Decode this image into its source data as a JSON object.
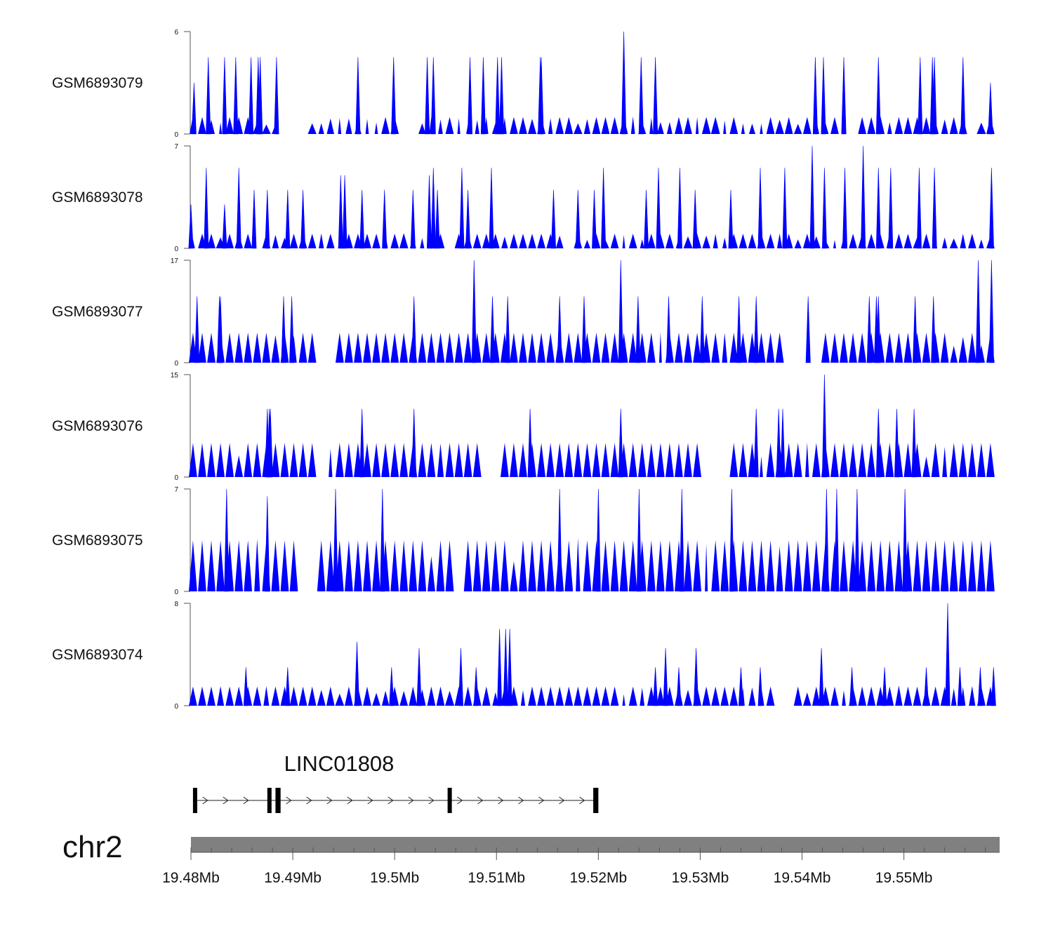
{
  "chart_data": {
    "type": "area",
    "title": "",
    "chromosome": "chr2",
    "xlim": [
      19.48,
      19.5594
    ],
    "x_unit": "Mb",
    "x_ticks": [
      19.48,
      19.49,
      19.5,
      19.51,
      19.52,
      19.53,
      19.54,
      19.55
    ],
    "x_tick_labels": [
      "19.48Mb",
      "19.49Mb",
      "19.5Mb",
      "19.51Mb",
      "19.52Mb",
      "19.53Mb",
      "19.54Mb",
      "19.55Mb"
    ],
    "series_color": "#0000ff",
    "tracks": [
      {
        "name": "GSM6893079",
        "ymax": 6,
        "ymin": 0,
        "baseline": 1,
        "seed": 79,
        "density": 0.55,
        "peaks": [
          [
            19.4803,
            3
          ],
          [
            19.4817,
            4.5
          ],
          [
            19.4833,
            4.5
          ],
          [
            19.4844,
            4.5
          ],
          [
            19.4859,
            4.5
          ],
          [
            19.4866,
            4.5
          ],
          [
            19.4868,
            4.5
          ],
          [
            19.4884,
            4.5
          ],
          [
            19.4964,
            4.5
          ],
          [
            19.4999,
            4.5
          ],
          [
            19.5032,
            4.5
          ],
          [
            19.5038,
            4.5
          ],
          [
            19.5074,
            4.5
          ],
          [
            19.5087,
            4.5
          ],
          [
            19.5101,
            4.5
          ],
          [
            19.5105,
            4.5
          ],
          [
            19.5143,
            4.5
          ],
          [
            19.5144,
            4.5
          ],
          [
            19.5225,
            6
          ],
          [
            19.5242,
            4.5
          ],
          [
            19.5256,
            4.5
          ],
          [
            19.5413,
            4.5
          ],
          [
            19.5421,
            4.5
          ],
          [
            19.5441,
            4.5
          ],
          [
            19.5475,
            4.5
          ],
          [
            19.5516,
            4.5
          ],
          [
            19.5528,
            4.5
          ],
          [
            19.553,
            4.5
          ],
          [
            19.5558,
            4.5
          ],
          [
            19.5585,
            3
          ]
        ],
        "gaps": [
          [
            19.489,
            19.4915
          ],
          [
            19.5008,
            19.502
          ],
          [
            19.544,
            19.5458
          ],
          [
            19.556,
            19.5575
          ]
        ]
      },
      {
        "name": "GSM6893078",
        "ymax": 7,
        "ymin": 0,
        "baseline": 1,
        "seed": 78,
        "density": 0.55,
        "peaks": [
          [
            19.48,
            3
          ],
          [
            19.4815,
            5.5
          ],
          [
            19.4833,
            3
          ],
          [
            19.4847,
            5.5
          ],
          [
            19.4862,
            4
          ],
          [
            19.4875,
            4
          ],
          [
            19.4895,
            4
          ],
          [
            19.491,
            4
          ],
          [
            19.4947,
            5
          ],
          [
            19.4951,
            5
          ],
          [
            19.4968,
            4
          ],
          [
            19.499,
            4
          ],
          [
            19.5018,
            4
          ],
          [
            19.5034,
            5
          ],
          [
            19.5038,
            5.5
          ],
          [
            19.5042,
            4
          ],
          [
            19.5066,
            5.5
          ],
          [
            19.5072,
            4
          ],
          [
            19.5095,
            5.5
          ],
          [
            19.5156,
            4
          ],
          [
            19.518,
            4
          ],
          [
            19.5196,
            4
          ],
          [
            19.5205,
            5.5
          ],
          [
            19.5247,
            4
          ],
          [
            19.5259,
            5.5
          ],
          [
            19.528,
            5.5
          ],
          [
            19.5295,
            4
          ],
          [
            19.533,
            4
          ],
          [
            19.5359,
            5.5
          ],
          [
            19.5383,
            5.5
          ],
          [
            19.541,
            7
          ],
          [
            19.5422,
            5.5
          ],
          [
            19.5442,
            5.5
          ],
          [
            19.546,
            7
          ],
          [
            19.5475,
            5.5
          ],
          [
            19.5487,
            5.5
          ],
          [
            19.5515,
            5.5
          ],
          [
            19.553,
            5.5
          ],
          [
            19.5586,
            5.5
          ]
        ],
        "gaps": [
          [
            19.4858,
            19.4868
          ],
          [
            19.505,
            19.506
          ],
          [
            19.5165,
            19.5175
          ]
        ]
      },
      {
        "name": "GSM6893077",
        "ymax": 17,
        "ymin": 0,
        "baseline": 5,
        "seed": 77,
        "density": 0.12,
        "peaks": [
          [
            19.4806,
            11
          ],
          [
            19.4828,
            11
          ],
          [
            19.4829,
            11
          ],
          [
            19.4891,
            11
          ],
          [
            19.4899,
            11
          ],
          [
            19.5019,
            11
          ],
          [
            19.5078,
            17
          ],
          [
            19.5096,
            11
          ],
          [
            19.5111,
            11
          ],
          [
            19.5162,
            11
          ],
          [
            19.5186,
            11
          ],
          [
            19.5222,
            17
          ],
          [
            19.5239,
            11
          ],
          [
            19.5269,
            11
          ],
          [
            19.5302,
            11
          ],
          [
            19.5338,
            11
          ],
          [
            19.5355,
            11
          ],
          [
            19.5406,
            11
          ],
          [
            19.5466,
            11
          ],
          [
            19.5473,
            11
          ],
          [
            19.5475,
            11
          ],
          [
            19.5511,
            11
          ],
          [
            19.5529,
            11
          ],
          [
            19.5573,
            17
          ],
          [
            19.5586,
            17
          ]
        ],
        "gaps": [
          [
            19.492,
            19.4945
          ],
          [
            19.5385,
            19.542
          ]
        ]
      },
      {
        "name": "GSM6893076",
        "ymax": 15,
        "ymin": 0,
        "baseline": 5,
        "seed": 76,
        "density": 0.07,
        "peaks": [
          [
            19.4875,
            10
          ],
          [
            19.4877,
            10
          ],
          [
            19.4878,
            10
          ],
          [
            19.4968,
            10
          ],
          [
            19.5019,
            10
          ],
          [
            19.5133,
            10
          ],
          [
            19.5222,
            10
          ],
          [
            19.5355,
            10
          ],
          [
            19.5377,
            10
          ],
          [
            19.5381,
            10
          ],
          [
            19.5422,
            15
          ],
          [
            19.5475,
            10
          ],
          [
            19.5493,
            10
          ],
          [
            19.551,
            10
          ]
        ],
        "gaps": [
          [
            19.492,
            19.4935
          ],
          [
            19.509,
            19.51
          ],
          [
            19.5305,
            19.5325
          ]
        ]
      },
      {
        "name": "GSM6893075",
        "ymax": 7,
        "ymin": 0,
        "baseline": 3.5,
        "seed": 75,
        "density": 0.06,
        "peaks": [
          [
            19.4835,
            7
          ],
          [
            19.4875,
            6.5
          ],
          [
            19.4942,
            7
          ],
          [
            19.4988,
            7
          ],
          [
            19.5162,
            7
          ],
          [
            19.52,
            7
          ],
          [
            19.524,
            7
          ],
          [
            19.5282,
            7
          ],
          [
            19.5331,
            7
          ],
          [
            19.5424,
            7
          ],
          [
            19.5434,
            7
          ],
          [
            19.5454,
            7
          ],
          [
            19.5501,
            7
          ]
        ],
        "gaps": [
          [
            19.4905,
            19.4925
          ],
          [
            19.5055,
            19.507
          ]
        ]
      },
      {
        "name": "GSM6893074",
        "ymax": 8,
        "ymin": 0,
        "baseline": 1.5,
        "seed": 74,
        "density": 0.3,
        "peaks": [
          [
            19.4854,
            3
          ],
          [
            19.4895,
            3
          ],
          [
            19.4963,
            5
          ],
          [
            19.4997,
            3
          ],
          [
            19.5024,
            4.5
          ],
          [
            19.5065,
            4.5
          ],
          [
            19.508,
            3
          ],
          [
            19.5103,
            6
          ],
          [
            19.5109,
            6
          ],
          [
            19.5113,
            6
          ],
          [
            19.5256,
            3
          ],
          [
            19.5266,
            4.5
          ],
          [
            19.5279,
            3
          ],
          [
            19.5296,
            4.5
          ],
          [
            19.534,
            3
          ],
          [
            19.5359,
            3
          ],
          [
            19.5419,
            4.5
          ],
          [
            19.5449,
            3
          ],
          [
            19.5481,
            3
          ],
          [
            19.5522,
            3
          ],
          [
            19.5543,
            8
          ],
          [
            19.5555,
            3
          ],
          [
            19.5575,
            3
          ],
          [
            19.5588,
            3
          ]
        ],
        "gaps": [
          [
            19.5375,
            19.5395
          ]
        ]
      }
    ],
    "gene": {
      "name": "LINC01808",
      "strand": "+",
      "start": 19.4802,
      "end": 19.52,
      "exons": [
        [
          19.4802,
          19.4806
        ],
        [
          19.4875,
          19.4877
        ],
        [
          19.4883,
          19.4888
        ],
        [
          19.5052,
          19.5056
        ],
        [
          19.5195,
          19.52
        ]
      ]
    }
  }
}
